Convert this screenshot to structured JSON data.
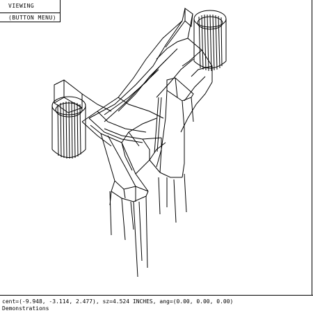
{
  "window": {
    "menu_title": "VIEWING",
    "menu_button_label": "(BUTTON MENU)"
  },
  "status": {
    "view_params": "cent=(-9.948, -3.114, 2.477), sz=4.524 INCHES, ang=(0.00, 0.00, 0.00)",
    "message": "Demonstrations"
  },
  "colors": {
    "background": "#ffffff",
    "wireframe": "#000000"
  }
}
